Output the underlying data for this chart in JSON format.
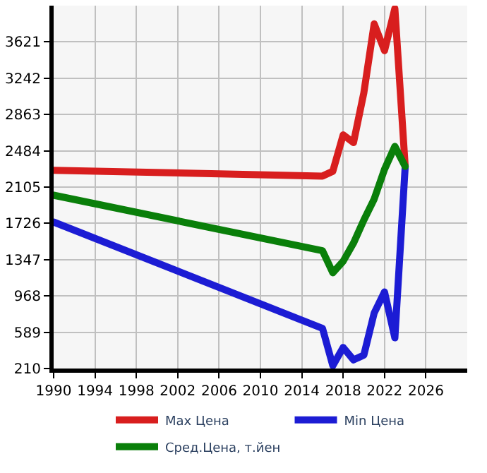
{
  "chart_data": {
    "type": "line",
    "x": [
      1990,
      2016,
      2017,
      2018,
      2019,
      2020,
      2021,
      2022,
      2023,
      2024
    ],
    "series": [
      {
        "name": "Max Цена",
        "color": "#d81e1e",
        "values": [
          2280,
          2220,
          2270,
          2650,
          2570,
          3090,
          3810,
          3530,
          3970,
          2320
        ]
      },
      {
        "name": "Min Цена",
        "color": "#1c1cd4",
        "values": [
          1740,
          630,
          240,
          430,
          300,
          350,
          790,
          1010,
          530,
          2320
        ]
      },
      {
        "name": "Сред.Цена, т.йен",
        "color": "#0a7f0a",
        "values": [
          2020,
          1440,
          1210,
          1330,
          1520,
          1760,
          1980,
          2290,
          2530,
          2320
        ]
      }
    ],
    "xlim": [
      1990,
      2030
    ],
    "xticks": [
      1990,
      1994,
      1998,
      2002,
      2006,
      2010,
      2014,
      2018,
      2022,
      2026
    ],
    "ylim": [
      210,
      4000
    ],
    "yticks": [
      210,
      589,
      968,
      1347,
      1726,
      2105,
      2484,
      2863,
      3242,
      3621
    ],
    "grid": true,
    "legend": "bottom",
    "marker": "none",
    "line_style": "solid"
  }
}
